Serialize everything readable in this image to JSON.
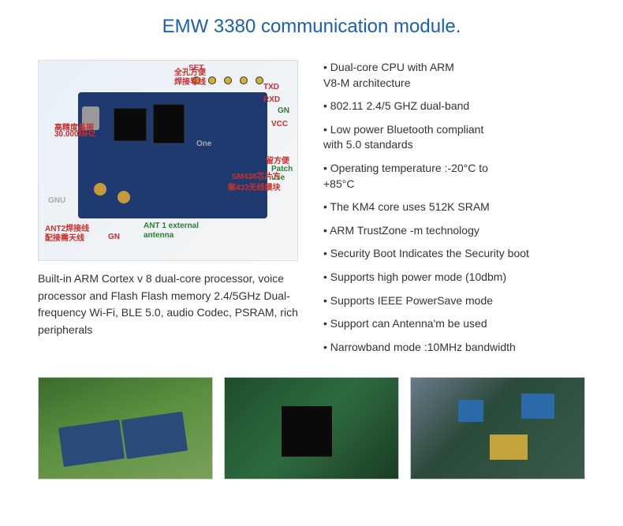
{
  "title": "EMW 3380 communication module.",
  "diagram": {
    "callouts": {
      "hanzi": "全孔方便",
      "hanzi2": "焊接导线",
      "set": "SET",
      "txd": "TXD",
      "rxd": "RXD",
      "gn1": "GN",
      "vcc": "VCC",
      "one": "One",
      "hanzi3": "留方便",
      "patch": "Patch\nuse",
      "sm": "SM438芯片方",
      "suffix": "案433无线模块",
      "freq_label": "高精度晶振",
      "freq": "30.000MHZ",
      "gnu": "GNU",
      "ant2": "ANT2焊接线",
      "ant2b": "配接需天线",
      "gn2": "GN",
      "ant1": "ANT 1 external",
      "ant1b": "antenna"
    }
  },
  "description": "Built-in ARM Cortex v 8 dual-core processor, voice processor and Flash Flash memory 2.4/5GHz Dual-frequency Wi-Fi, BLE 5.0, audio Codec, PSRAM, rich peripherals",
  "bullets": [
    {
      "line": "• Dual-core CPU with ARM",
      "cont": "V8-M architecture"
    },
    {
      "line": "• 802.11 2.4/5 GHZ dual-band"
    },
    {
      "line": "• Low power Bluetooth compliant",
      "cont": "with 5.0 standards"
    },
    {
      "line": "• Operating temperature :-20°C to",
      "cont": "+85°C"
    },
    {
      "line": "• The KM4 core uses 512K SRAM"
    },
    {
      "line": "• ARM TrustZone -m technology"
    },
    {
      "line": "• Security Boot Indicates the Security boot"
    },
    {
      "line": "• Supports high power mode (10dbm)"
    },
    {
      "line": "• Supports IEEE PowerSave mode"
    },
    {
      "line": "• Support can Antenna'm be used"
    },
    {
      "line": "• Narrowband mode :10MHz bandwidth"
    }
  ],
  "colors": {
    "title": "#1a5fb4",
    "text": "#333333",
    "callout_red": "#c9302c",
    "callout_green": "#2e7d32",
    "callout_gray": "#aaaaaa",
    "pcb_board": "#1e3a6e",
    "background": "#ffffff"
  }
}
